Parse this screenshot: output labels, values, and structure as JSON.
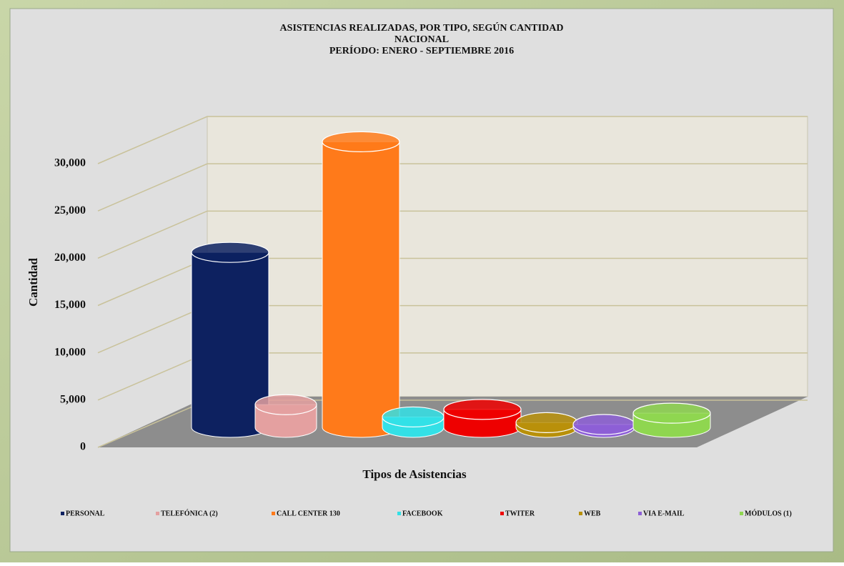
{
  "chart_data": {
    "type": "bar3d",
    "title": "ASISTENCIAS  REALIZADAS,  POR TIPO, SEGÚN CANTIDAD",
    "subtitle": "NACIONAL",
    "period": "PERÍODO: ENERO - SEPTIEMBRE 2016",
    "ylabel": "Cantidad",
    "xlabel": "Tipos de Asistencias",
    "ylim": [
      0,
      30000
    ],
    "yticks": [
      0,
      {
        "value": 5000,
        "label": "5,000"
      },
      {
        "value": 10000,
        "label": "10,000"
      },
      {
        "value": 15000,
        "label": "15,000"
      },
      {
        "value": 20000,
        "label": "20,000"
      },
      {
        "value": 25000,
        "label": "25,000"
      },
      {
        "value": 30000,
        "label": "30,000"
      }
    ],
    "grid": true,
    "series": [
      {
        "name": "PERSONAL",
        "color": "#0d2160",
        "values": [
          18500
        ]
      },
      {
        "name": "TELEFÓNICA (2)",
        "color": "#e4a0a0",
        "values": [
          2400
        ]
      },
      {
        "name": "CALL CENTER 130",
        "color": "#ff7a1a",
        "values": [
          30200
        ]
      },
      {
        "name": "FACEBOOK",
        "color": "#33e0e6",
        "values": [
          1100
        ]
      },
      {
        "name": "TWITER",
        "color": "#ee0000",
        "values": [
          1900
        ]
      },
      {
        "name": "WEB",
        "color": "#b8900a",
        "values": [
          500
        ]
      },
      {
        "name": "VIA E-MAIL",
        "color": "#8d5fd6",
        "values": [
          300
        ]
      },
      {
        "name": "MÓDULOS (1)",
        "color": "#8fd650",
        "values": [
          1500
        ]
      }
    ]
  }
}
